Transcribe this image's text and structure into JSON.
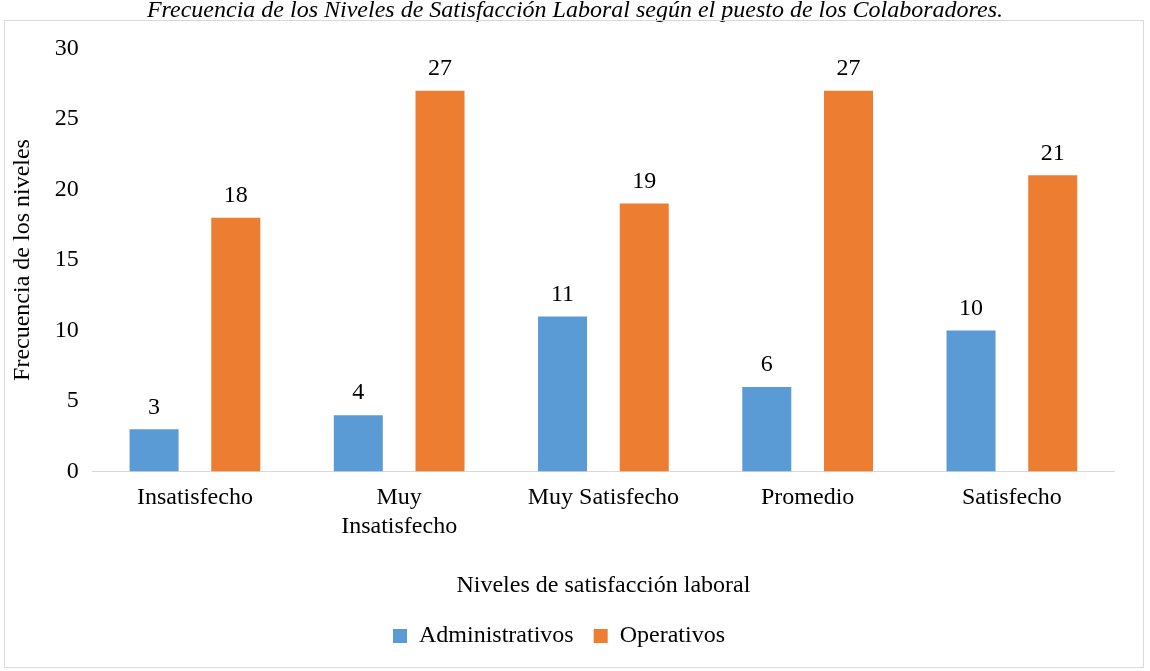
{
  "chart_data": {
    "type": "bar",
    "title": "Frecuencia de los Niveles de Satisfacción Laboral según el puesto de los Colaboradores.",
    "xlabel": "Niveles de satisfacción laboral",
    "ylabel": "Frecuencia de los niveles",
    "categories": [
      "Insatisfecho",
      "Muy Insatisfecho",
      "Muy Satisfecho",
      "Promedio",
      "Satisfecho"
    ],
    "series": [
      {
        "name": "Administrativos",
        "color": "#5b9bd5",
        "values": [
          3,
          4,
          11,
          6,
          10
        ]
      },
      {
        "name": "Operativos",
        "color": "#ed7d31",
        "values": [
          18,
          27,
          19,
          27,
          21
        ]
      }
    ],
    "ylim": [
      0,
      30
    ],
    "yticks": [
      0,
      5,
      10,
      15,
      20,
      25,
      30
    ],
    "grid": false,
    "legend": "bottom",
    "data_labels": true
  }
}
